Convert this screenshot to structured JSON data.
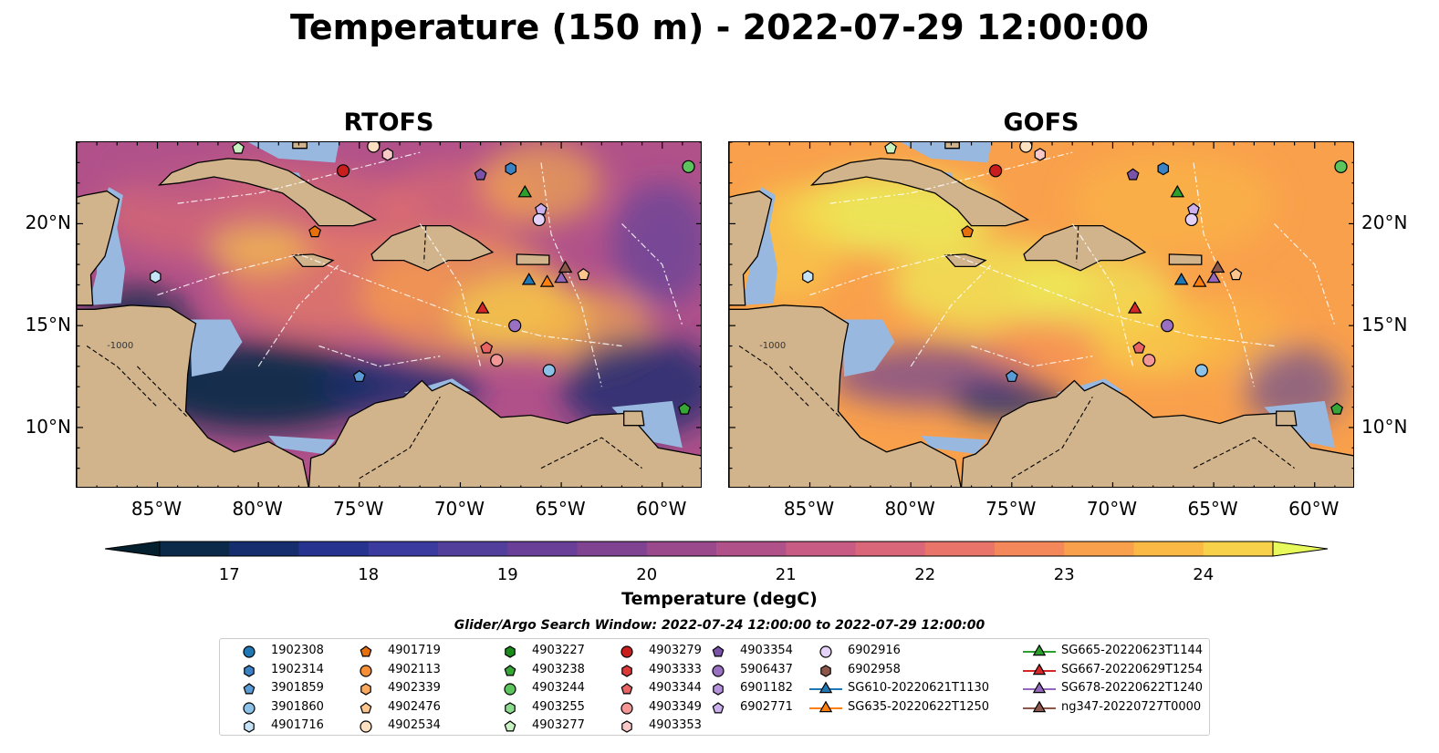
{
  "title": "Temperature (150 m) - 2022-07-29 12:00:00",
  "panels": [
    {
      "title": "RTOFS"
    },
    {
      "title": "GOFS"
    }
  ],
  "axes": {
    "lon_ticks": [
      "85°W",
      "80°W",
      "75°W",
      "70°W",
      "65°W",
      "60°W"
    ],
    "lat_ticks": [
      "20°N",
      "15°N",
      "10°N"
    ],
    "lon_range": [
      -89,
      -58
    ],
    "lat_range": [
      7,
      24
    ]
  },
  "contour_label": "-1000",
  "colorbar": {
    "title": "Temperature (degC)",
    "min": 16.5,
    "max": 24.5,
    "step": 0.5,
    "tick_labels": [
      "17",
      "18",
      "19",
      "20",
      "21",
      "22",
      "23",
      "24"
    ],
    "colors": [
      "#04202e",
      "#0b2a4a",
      "#162d6e",
      "#26348f",
      "#3b3a9e",
      "#523f9c",
      "#693f97",
      "#804391",
      "#99498c",
      "#b1518a",
      "#c75b83",
      "#da667a",
      "#e9756a",
      "#f4885a",
      "#f9a04c",
      "#fab845",
      "#f6d149",
      "#eee957",
      "#e8fa5b"
    ]
  },
  "colors": {
    "land": "#d2b48c",
    "shallow": "#98b8e0"
  },
  "search_window": "Glider/Argo Search Window: 2022-07-24 12:00:00 to 2022-07-29 12:00:00",
  "legend": [
    {
      "label": "1902308",
      "marker": "circle",
      "color": "#1f77b4"
    },
    {
      "label": "1902314",
      "marker": "hexagon",
      "color": "#3b82c4"
    },
    {
      "label": "3901859",
      "marker": "pentagon",
      "color": "#5b9bd5"
    },
    {
      "label": "3901860",
      "marker": "circle",
      "color": "#8cc1e8"
    },
    {
      "label": "4901716",
      "marker": "hexagon",
      "color": "#c6e2f5"
    },
    {
      "label": "4901719",
      "marker": "pentagon",
      "color": "#e6700c"
    },
    {
      "label": "4902113",
      "marker": "circle",
      "color": "#f78f36"
    },
    {
      "label": "4902339",
      "marker": "hexagon",
      "color": "#f9a85e"
    },
    {
      "label": "4902476",
      "marker": "pentagon",
      "color": "#fcc58d"
    },
    {
      "label": "4902534",
      "marker": "circle",
      "color": "#fde0c2"
    },
    {
      "label": "4903227",
      "marker": "hexagon",
      "color": "#1a8a1a"
    },
    {
      "label": "4903238",
      "marker": "pentagon",
      "color": "#37a637"
    },
    {
      "label": "4903244",
      "marker": "circle",
      "color": "#5cc45c"
    },
    {
      "label": "4903255",
      "marker": "hexagon",
      "color": "#8ddc8d"
    },
    {
      "label": "4903277",
      "marker": "pentagon",
      "color": "#c8f2c2"
    },
    {
      "label": "4903279",
      "marker": "circle",
      "color": "#c81e1e"
    },
    {
      "label": "4903333",
      "marker": "hexagon",
      "color": "#dc3a3a"
    },
    {
      "label": "4903344",
      "marker": "pentagon",
      "color": "#e86464"
    },
    {
      "label": "4903349",
      "marker": "circle",
      "color": "#f29696"
    },
    {
      "label": "4903353",
      "marker": "hexagon",
      "color": "#f9c8c8"
    },
    {
      "label": "4903354",
      "marker": "pentagon",
      "color": "#7a52a8"
    },
    {
      "label": "5906437",
      "marker": "circle",
      "color": "#9a70c2"
    },
    {
      "label": "6901182",
      "marker": "hexagon",
      "color": "#b692dc"
    },
    {
      "label": "6902771",
      "marker": "pentagon",
      "color": "#ccb0ee"
    },
    {
      "label": "6902916",
      "marker": "circle",
      "color": "#e4d2f8"
    },
    {
      "label": "6902958",
      "marker": "hexagon",
      "color": "#8c564b"
    },
    {
      "label": "SG610-20220621T1130",
      "marker": "triangle",
      "color": "#1f77b4",
      "line": true
    },
    {
      "label": "SG635-20220622T1250",
      "marker": "triangle",
      "color": "#ff7f0e",
      "line": true
    },
    {
      "label": "SG665-20220623T1144",
      "marker": "triangle",
      "color": "#2ca02c",
      "line": true
    },
    {
      "label": "SG667-20220629T1254",
      "marker": "triangle",
      "color": "#d62728",
      "line": true
    },
    {
      "label": "SG678-20220622T1240",
      "marker": "triangle",
      "color": "#9467bd",
      "line": true
    },
    {
      "label": "ng347-20220727T0000",
      "marker": "triangle",
      "color": "#8c564b",
      "line": true
    }
  ],
  "observations": [
    {
      "id": "4903279",
      "lon": -75.8,
      "lat": 22.6
    },
    {
      "id": "4903353",
      "lon": -73.6,
      "lat": 23.4
    },
    {
      "id": "4903277",
      "lon": -81.0,
      "lat": 23.7
    },
    {
      "id": "4902534",
      "lon": -74.3,
      "lat": 23.8
    },
    {
      "id": "4903354",
      "lon": -69.0,
      "lat": 22.4
    },
    {
      "id": "1902314",
      "lon": -67.5,
      "lat": 22.7
    },
    {
      "id": "4903244",
      "lon": -58.7,
      "lat": 22.8
    },
    {
      "id": "SG665-20220623T1144",
      "lon": -66.8,
      "lat": 21.5
    },
    {
      "id": "6902771",
      "lon": -66.0,
      "lat": 20.7
    },
    {
      "id": "6902916",
      "lon": -66.1,
      "lat": 20.2
    },
    {
      "id": "4901719",
      "lon": -77.2,
      "lat": 19.6
    },
    {
      "id": "4901716",
      "lon": -85.1,
      "lat": 17.4
    },
    {
      "id": "SG610-20220621T1130",
      "lon": -66.6,
      "lat": 17.2
    },
    {
      "id": "SG635-20220622T1250",
      "lon": -65.7,
      "lat": 17.1
    },
    {
      "id": "SG678-20220622T1240",
      "lon": -65.0,
      "lat": 17.3
    },
    {
      "id": "ng347-20220727T0000",
      "lon": -64.8,
      "lat": 17.8
    },
    {
      "id": "4902476",
      "lon": -63.9,
      "lat": 17.5
    },
    {
      "id": "SG667-20220629T1254",
      "lon": -68.9,
      "lat": 15.8
    },
    {
      "id": "5906437",
      "lon": -67.3,
      "lat": 15.0
    },
    {
      "id": "4903344",
      "lon": -68.7,
      "lat": 13.9
    },
    {
      "id": "4903349",
      "lon": -68.2,
      "lat": 13.3
    },
    {
      "id": "3901860",
      "lon": -65.6,
      "lat": 12.8
    },
    {
      "id": "3901859",
      "lon": -75.0,
      "lat": 12.5
    },
    {
      "id": "4903238",
      "lon": -58.9,
      "lat": 10.9
    }
  ]
}
